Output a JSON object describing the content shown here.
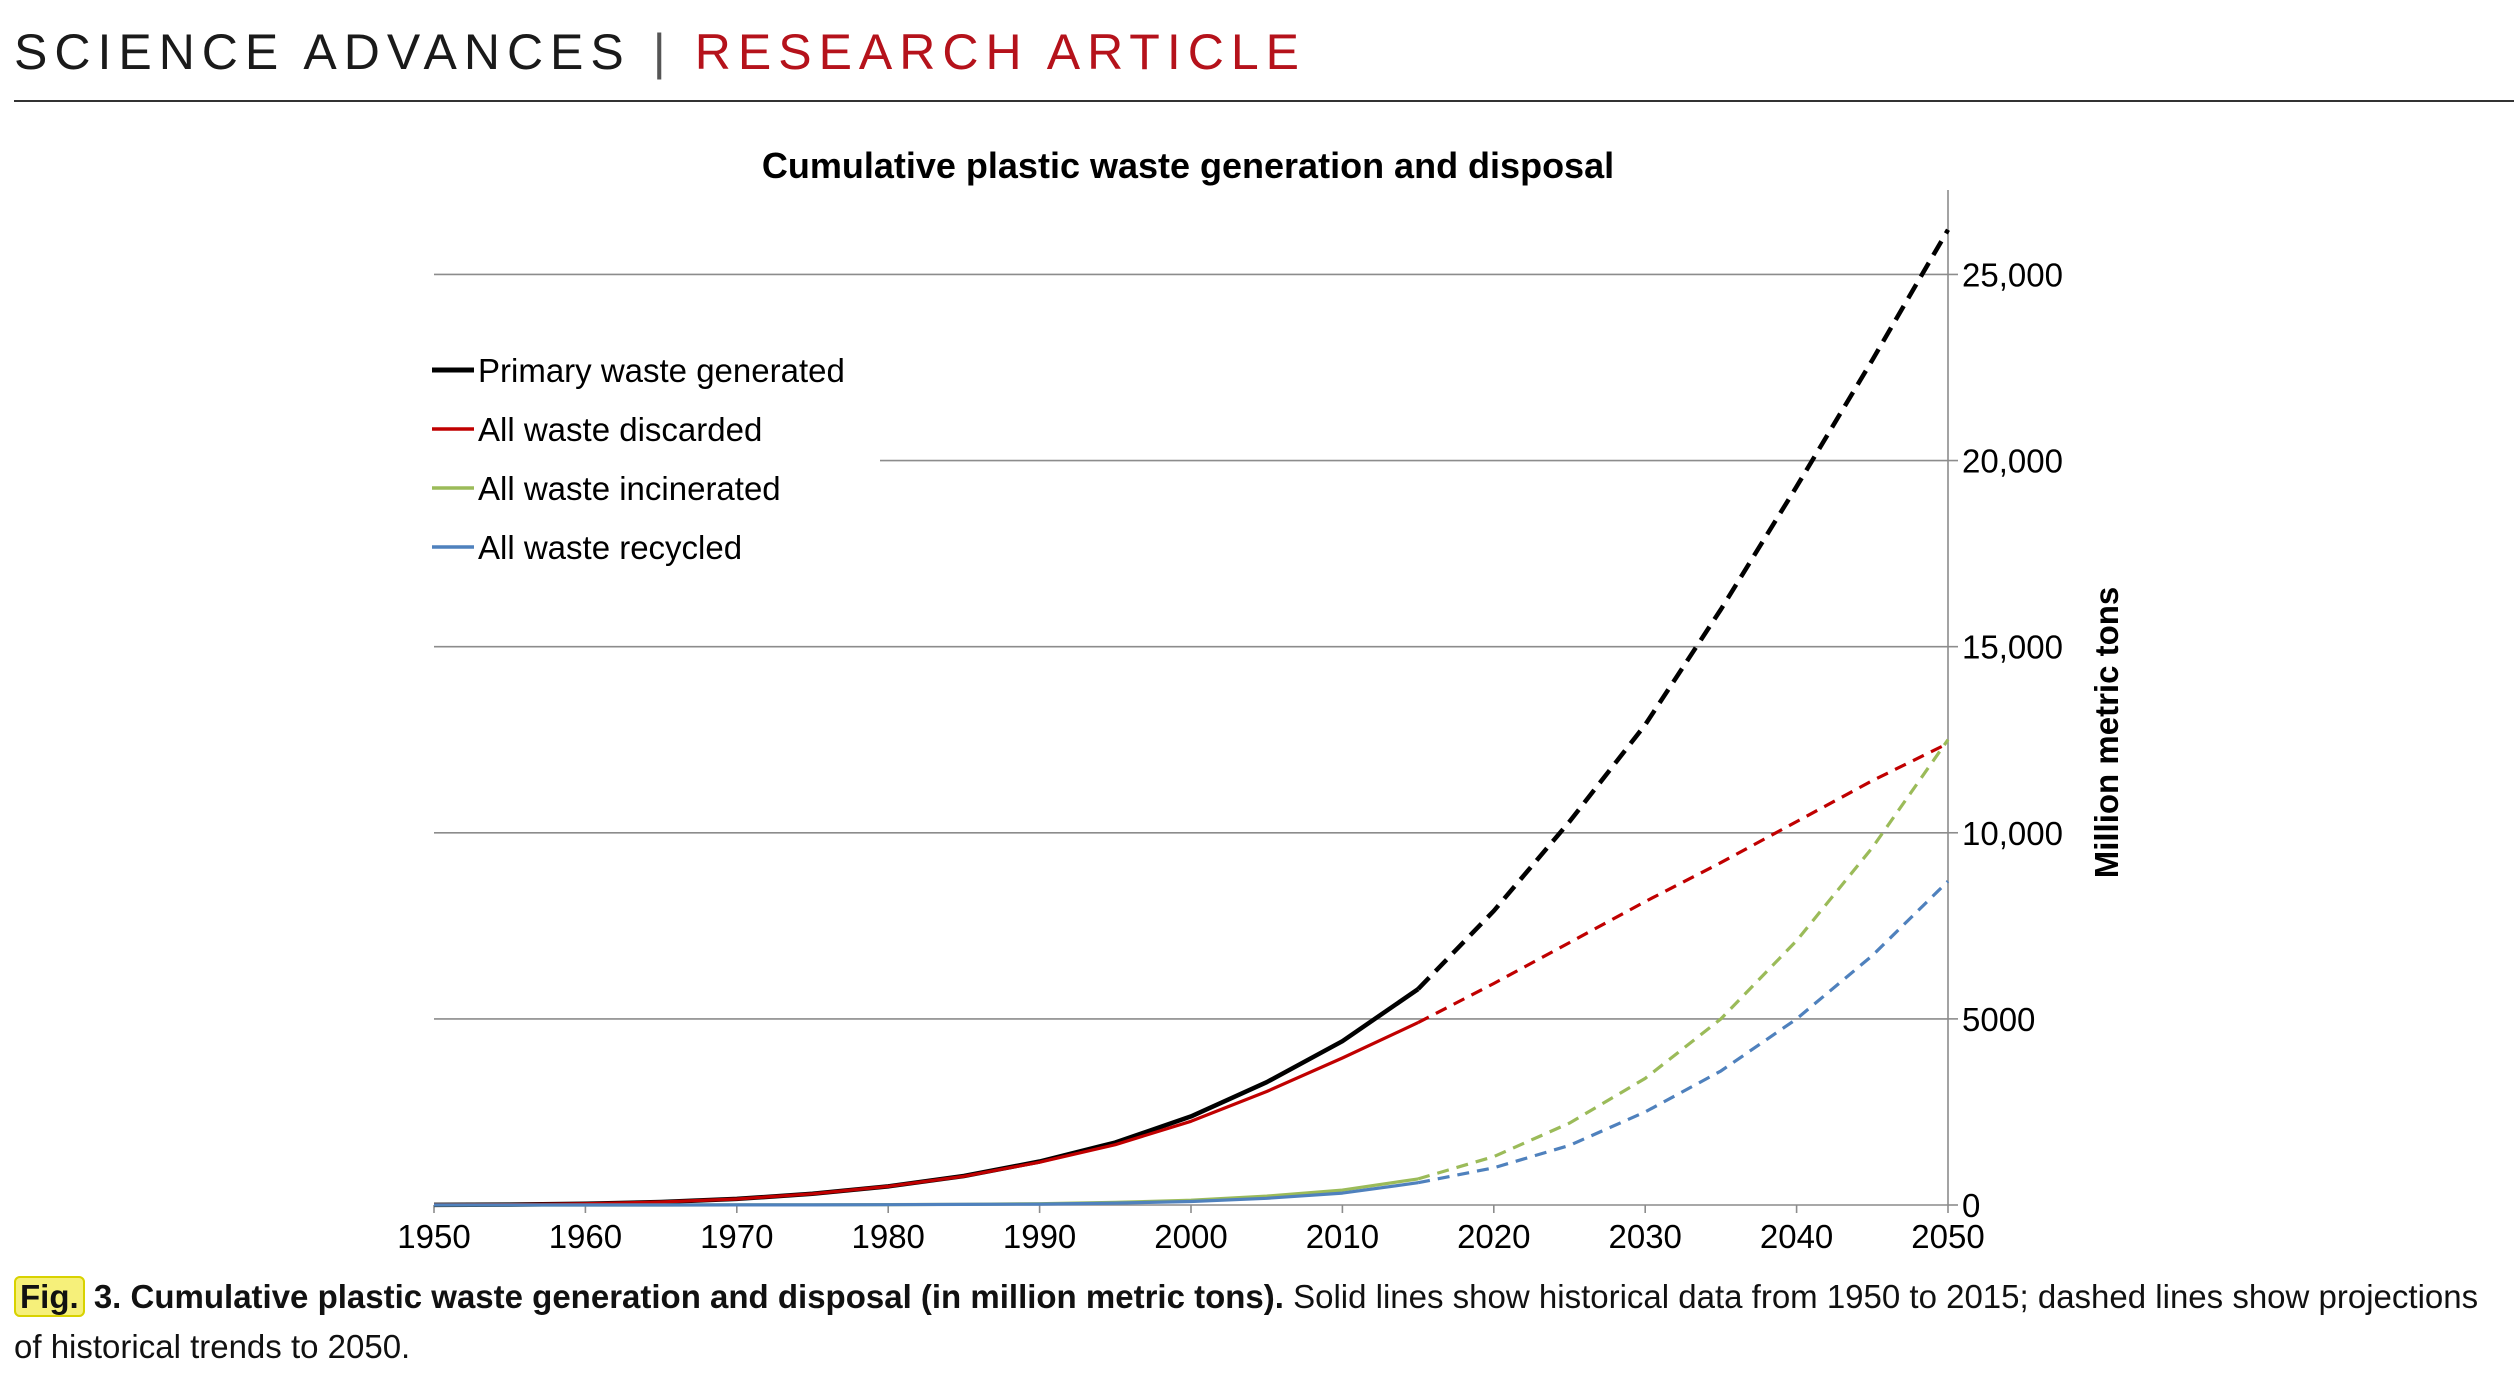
{
  "header": {
    "journal": "SCIENCE ADVANCES",
    "separator": "|",
    "section": "RESEARCH ARTICLE"
  },
  "caption": {
    "fig_label": "Fig.",
    "fig_number": "3.",
    "bold_text": "Cumulative plastic waste generation and disposal (in million metric tons).",
    "text": "Solid lines show historical data from 1950 to 2015; dashed lines show projections of historical trends to 2050."
  },
  "chart_data": {
    "type": "line",
    "title": "Cumulative plastic waste generation and disposal",
    "xlabel": "",
    "ylabel": "Million metric tons",
    "x_ticks": [
      1950,
      1960,
      1970,
      1980,
      1990,
      2000,
      2010,
      2020,
      2030,
      2040,
      2050
    ],
    "y_ticks": [
      0,
      5000,
      10000,
      15000,
      20000,
      25000
    ],
    "y_tick_labels": [
      "0",
      "5000",
      "10,000",
      "15,000",
      "20,000",
      "25,000"
    ],
    "xlim": [
      1950,
      2050
    ],
    "ylim": [
      0,
      27000
    ],
    "grid": "horizontal",
    "y_axis_side": "right",
    "legend_position": "top-left",
    "historical_end": 2015,
    "x": [
      1950,
      1955,
      1960,
      1965,
      1970,
      1975,
      1980,
      1985,
      1990,
      1995,
      2000,
      2005,
      2010,
      2015,
      2020,
      2025,
      2030,
      2035,
      2040,
      2045,
      2050
    ],
    "series": [
      {
        "name": "Primary waste generated",
        "color": "#000000",
        "values": [
          2,
          10,
          35,
          80,
          165,
          300,
          500,
          780,
          1170,
          1680,
          2380,
          3300,
          4400,
          5800,
          7900,
          10300,
          12900,
          16000,
          19300,
          22700,
          26200
        ]
      },
      {
        "name": "All waste discarded",
        "color": "#c00000",
        "values": [
          2,
          10,
          35,
          80,
          160,
          300,
          500,
          770,
          1150,
          1620,
          2250,
          3050,
          3950,
          4900,
          5950,
          7050,
          8150,
          9200,
          10300,
          11400,
          12400
        ]
      },
      {
        "name": "All waste incinerated",
        "color": "#9bbb59",
        "values": [
          0,
          0,
          0,
          1,
          2,
          5,
          10,
          20,
          35,
          70,
          130,
          240,
          400,
          700,
          1300,
          2200,
          3400,
          5000,
          7100,
          9600,
          12500
        ]
      },
      {
        "name": "All waste recycled",
        "color": "#4f81bd",
        "values": [
          0,
          0,
          0,
          1,
          2,
          4,
          8,
          15,
          25,
          50,
          95,
          180,
          320,
          600,
          1000,
          1600,
          2500,
          3600,
          5000,
          6700,
          8700
        ]
      }
    ]
  }
}
